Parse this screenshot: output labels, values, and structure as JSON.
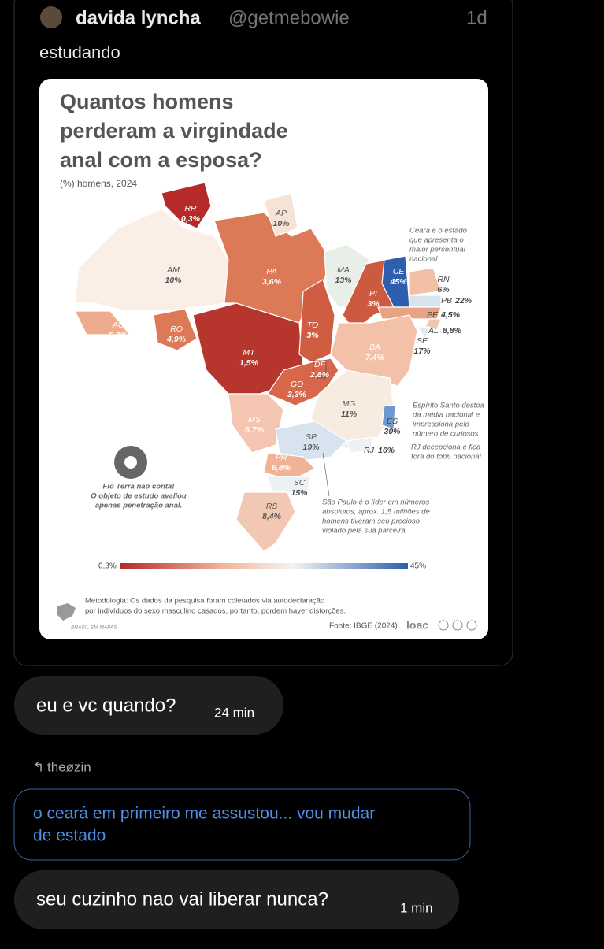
{
  "tweet": {
    "name": "davida lyncha",
    "handle": "@getmebowie",
    "time": "1d",
    "text": "estudando"
  },
  "map": {
    "title": [
      "Quantos homens",
      "perderam a virgindade",
      "anal com a esposa?"
    ],
    "subtitle": "(%) homens, 2024",
    "states": [
      {
        "code": "RR",
        "value": "0,3%"
      },
      {
        "code": "AP",
        "value": "10%"
      },
      {
        "code": "AM",
        "value": "10%"
      },
      {
        "code": "PA",
        "value": "3,6%"
      },
      {
        "code": "MA",
        "value": "13%"
      },
      {
        "code": "CE",
        "value": "45%"
      },
      {
        "code": "RN",
        "value": "6%"
      },
      {
        "code": "PB",
        "value": "22%"
      },
      {
        "code": "PE",
        "value": "4,5%"
      },
      {
        "code": "AL",
        "value": "8,8%"
      },
      {
        "code": "SE",
        "value": "17%"
      },
      {
        "code": "PI",
        "value": "3%"
      },
      {
        "code": "AC",
        "value": "5,2%"
      },
      {
        "code": "RO",
        "value": "4,9%"
      },
      {
        "code": "MT",
        "value": "1,5%"
      },
      {
        "code": "TO",
        "value": "3%"
      },
      {
        "code": "BA",
        "value": "7,4%"
      },
      {
        "code": "DF",
        "value": "2,8%"
      },
      {
        "code": "GO",
        "value": "3,3%"
      },
      {
        "code": "MG",
        "value": "11%"
      },
      {
        "code": "ES",
        "value": "30%"
      },
      {
        "code": "MS",
        "value": "6,7%"
      },
      {
        "code": "SP",
        "value": "19%"
      },
      {
        "code": "RJ",
        "value": "16%"
      },
      {
        "code": "PR",
        "value": "6,8%"
      },
      {
        "code": "SC",
        "value": "15%"
      },
      {
        "code": "RS",
        "value": "8,4%"
      }
    ],
    "notes": [
      [
        "Ceará é o estado",
        "que apresenta o",
        "maior percentual",
        "nacional"
      ],
      [
        "Espírito Santo destoa",
        "da média nacional e",
        "impressiona pelo",
        "número de curiosos"
      ],
      [
        "RJ decepciona e fica",
        "fora do top5 nacional"
      ],
      [
        "São Paulo é o líder em números",
        "absolutos, aprox. 1,5 milhões de",
        "homens tiveram seu precioso",
        "violado pela sua parceira"
      ],
      [
        "Fio Terra não conta!",
        "O objeto de estudo avaliou",
        "apenas penetração anal."
      ]
    ],
    "legend": {
      "min": "0,3%",
      "max": "45%"
    },
    "methodology": [
      "Metodologia: Os dados da pesquisa foram coletados via autodeclaração",
      "por indivíduos do sexo masculino casados, portanto, pordem haver distorções."
    ],
    "source": "Fonte: IBGE (2024)",
    "logo": "loac",
    "brand": "BRASIL EM MAPAS"
  },
  "messages": [
    {
      "text": "eu e vc quando?",
      "time": "24 min"
    }
  ],
  "reply": {
    "author": "theøzin",
    "text": [
      "o ceará em primeiro me assustou... vou mudar",
      "de estado"
    ]
  },
  "last_message": {
    "text": "seu cuzinho nao vai liberar nunca?",
    "time": "1 min"
  }
}
